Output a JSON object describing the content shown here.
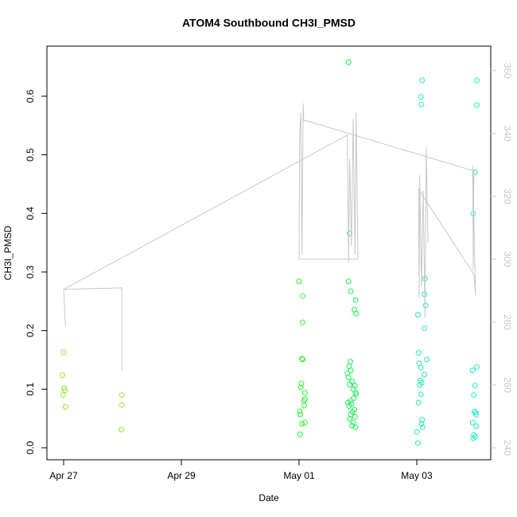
{
  "chart_data": {
    "type": "scatter",
    "title": "ATOM4 Southbound CH3I_PMSD",
    "x_label": "Date",
    "y_label": "CH3I_PMSD",
    "xlim": [
      -0.284,
      7.257
    ],
    "xticks": [
      {
        "value": 0,
        "label": "Apr 27"
      },
      {
        "value": 2,
        "label": "Apr 29"
      },
      {
        "value": 4,
        "label": "May 01"
      },
      {
        "value": 6,
        "label": "May 03"
      }
    ],
    "ylim": [
      -0.0204,
      0.6855
    ],
    "yticks": [
      {
        "value": 0,
        "label": "0.0"
      },
      0.1,
      0.2,
      0.3,
      0.4,
      0.5,
      0.6
    ],
    "y2lim": [
      236.2,
      367.8
    ],
    "y2ticks": [
      240,
      260,
      280,
      300,
      320,
      340,
      360
    ],
    "series": [
      {
        "color": "#99e233",
        "x": [
          0.0,
          -0.02,
          0.01,
          0.02,
          -0.01,
          0.03
        ],
        "values": [
          0.163,
          0.124,
          0.102,
          0.098,
          0.09,
          0.07
        ]
      },
      {
        "color": "#8fe633",
        "x": [
          0.99,
          0.99,
          0.98
        ],
        "values": [
          0.09,
          0.073,
          0.031
        ]
      },
      {
        "color": "#33ee33",
        "x": [
          4.0,
          4.06,
          4.06,
          4.05,
          4.06,
          4.04,
          4.03,
          4.1,
          4.1,
          4.08,
          4.09,
          4.01,
          4.02,
          4.1,
          4.05,
          4.02
        ],
        "values": [
          0.284,
          0.259,
          0.214,
          0.152,
          0.151,
          0.11,
          0.103,
          0.094,
          0.083,
          0.08,
          0.072,
          0.062,
          0.057,
          0.043,
          0.041,
          0.023
        ]
      },
      {
        "color": "#22ee55",
        "x": [
          4.84,
          4.86,
          4.84,
          4.88,
          4.96,
          4.94,
          4.97,
          4.87,
          4.85,
          4.88,
          4.82,
          4.84,
          4.9,
          4.86,
          4.95,
          4.92,
          4.96,
          4.97,
          4.93,
          4.87,
          4.83,
          4.89,
          4.85,
          4.94,
          4.91,
          4.88,
          4.95,
          4.86,
          4.92,
          4.9,
          4.96
        ],
        "values": [
          0.658,
          0.366,
          0.284,
          0.267,
          0.252,
          0.236,
          0.229,
          0.147,
          0.139,
          0.132,
          0.127,
          0.12,
          0.113,
          0.108,
          0.106,
          0.1,
          0.094,
          0.091,
          0.085,
          0.08,
          0.077,
          0.075,
          0.071,
          0.065,
          0.061,
          0.057,
          0.053,
          0.049,
          0.043,
          0.038,
          0.035
        ]
      },
      {
        "color": "#22eeaa",
        "x": [
          6.09,
          6.07,
          6.08,
          6.14,
          6.13,
          6.15,
          6.02,
          6.13,
          6.03,
          6.17,
          6.04,
          6.07,
          6.13,
          6.06,
          6.08,
          6.05,
          6.07,
          6.03,
          6.09,
          6.08,
          6.1,
          6.0,
          6.02
        ],
        "values": [
          0.627,
          0.599,
          0.586,
          0.289,
          0.262,
          0.243,
          0.227,
          0.204,
          0.162,
          0.151,
          0.144,
          0.137,
          0.125,
          0.115,
          0.111,
          0.107,
          0.091,
          0.077,
          0.048,
          0.041,
          0.035,
          0.027,
          0.008
        ]
      },
      {
        "color": "#22eecc",
        "x": [
          7.02,
          7.02,
          6.99,
          6.96,
          7.02,
          6.95,
          6.99,
          6.97,
          6.98,
          7.0,
          7.01,
          6.95,
          7.01,
          6.97,
          6.99,
          6.96
        ],
        "values": [
          0.627,
          0.585,
          0.47,
          0.4,
          0.138,
          0.132,
          0.106,
          0.09,
          0.062,
          0.06,
          0.057,
          0.043,
          0.037,
          0.022,
          0.019,
          0.016
        ]
      },
      {
        "type": "line",
        "axis": "y2",
        "color": "#c8c8c8",
        "x": [
          0.03,
          0.0,
          0.99,
          0.99,
          null,
          0.0,
          4.82,
          4.84,
          4.86,
          4.89,
          4.92,
          4.95,
          4.97,
          5.0,
          4.0,
          4.01,
          4.03,
          4.05,
          4.07,
          4.08,
          4.12,
          6.97,
          6.96,
          6.95,
          7.0,
          6.97,
          6.03,
          6.04,
          6.05,
          6.08,
          6.11,
          6.14,
          6.16,
          6.19
        ],
        "values": [
          278.7,
          290.4,
          290.9,
          264.6,
          null,
          290.4,
          339.5,
          299.0,
          331.9,
          304.1,
          344.6,
          301.5,
          346.6,
          300.0,
          300.0,
          339.5,
          346.6,
          301.5,
          349.6,
          344.1,
          344.1,
          328.1,
          296.5,
          329.9,
          288.4,
          295.2,
          322.3,
          287.6,
          326.8,
          291.4,
          321.8,
          281.3,
          335.7,
          305.3
        ]
      }
    ]
  }
}
